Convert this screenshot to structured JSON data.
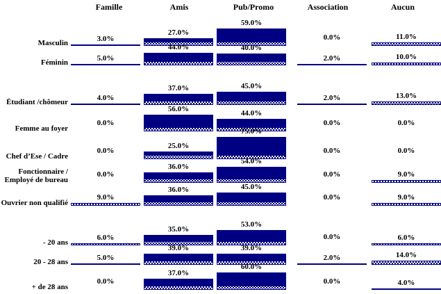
{
  "chart_data": {
    "type": "bar",
    "title": "",
    "unit": "%",
    "value_format": "one decimal with % sign",
    "legend_position": "none",
    "grid": false,
    "axes": "none - values shown as data labels above each bar, bar thickness proportional to value",
    "categories": [
      "Masculin",
      "Féminin",
      "Étudiant /chômeur",
      "Femme au foyer",
      "Chef d’Ese / Cadre",
      "Fonctionnaire /\nEmployé de bureau",
      "Ouvrier non qualifié",
      "- 20 ans",
      "20 - 28 ans",
      "+ de 28 ans"
    ],
    "series": [
      {
        "name": "Famille",
        "values": [
          3,
          5,
          4,
          0,
          0,
          0,
          9,
          6,
          5,
          0
        ],
        "labels": [
          "3.0%",
          "5.0%",
          "4.0%",
          "0.0%",
          "0.0%",
          "0.0%",
          "9.0%",
          "6.0%",
          "5.0%",
          "0.0%"
        ]
      },
      {
        "name": "Amis",
        "values": [
          27,
          44,
          37,
          56,
          25,
          36,
          36,
          35,
          39,
          37
        ],
        "labels": [
          "27.0%",
          "44.0%",
          "37.0%",
          "56.0%",
          "25.0%",
          "36.0%",
          "36.0%",
          "35.0%",
          "39.0%",
          "37.0%"
        ]
      },
      {
        "name": "Pub/Promo",
        "values": [
          59,
          40,
          45,
          44,
          75,
          54,
          45,
          53,
          39,
          60
        ],
        "labels": [
          "59.0%",
          "40.0%",
          "45.0%",
          "44.0%",
          "75.0%",
          "54.0%",
          "45.0%",
          "53.0%",
          "39.0%",
          "60.0%"
        ]
      },
      {
        "name": "Association",
        "values": [
          0,
          2,
          2,
          0,
          0,
          0,
          0,
          0,
          2,
          0
        ],
        "labels": [
          "0.0%",
          "2.0%",
          "2.0%",
          "0.0%",
          "0.0%",
          "0.0%",
          "0.0%",
          "0.0%",
          "2.0%",
          "0.0%"
        ]
      },
      {
        "name": "Aucun",
        "values": [
          11,
          10,
          13,
          0,
          0,
          9,
          9,
          6,
          14,
          4
        ],
        "labels": [
          "11.0%",
          "10.0%",
          "13.0%",
          "0.0%",
          "0.0%",
          "9.0%",
          "9.0%",
          "6.0%",
          "14.0%",
          "4.0%"
        ]
      }
    ]
  },
  "colors": {
    "bar_navy": "#000082",
    "pattern_fill": "#ffffff",
    "text": "#000000",
    "background": "#ffffff"
  }
}
